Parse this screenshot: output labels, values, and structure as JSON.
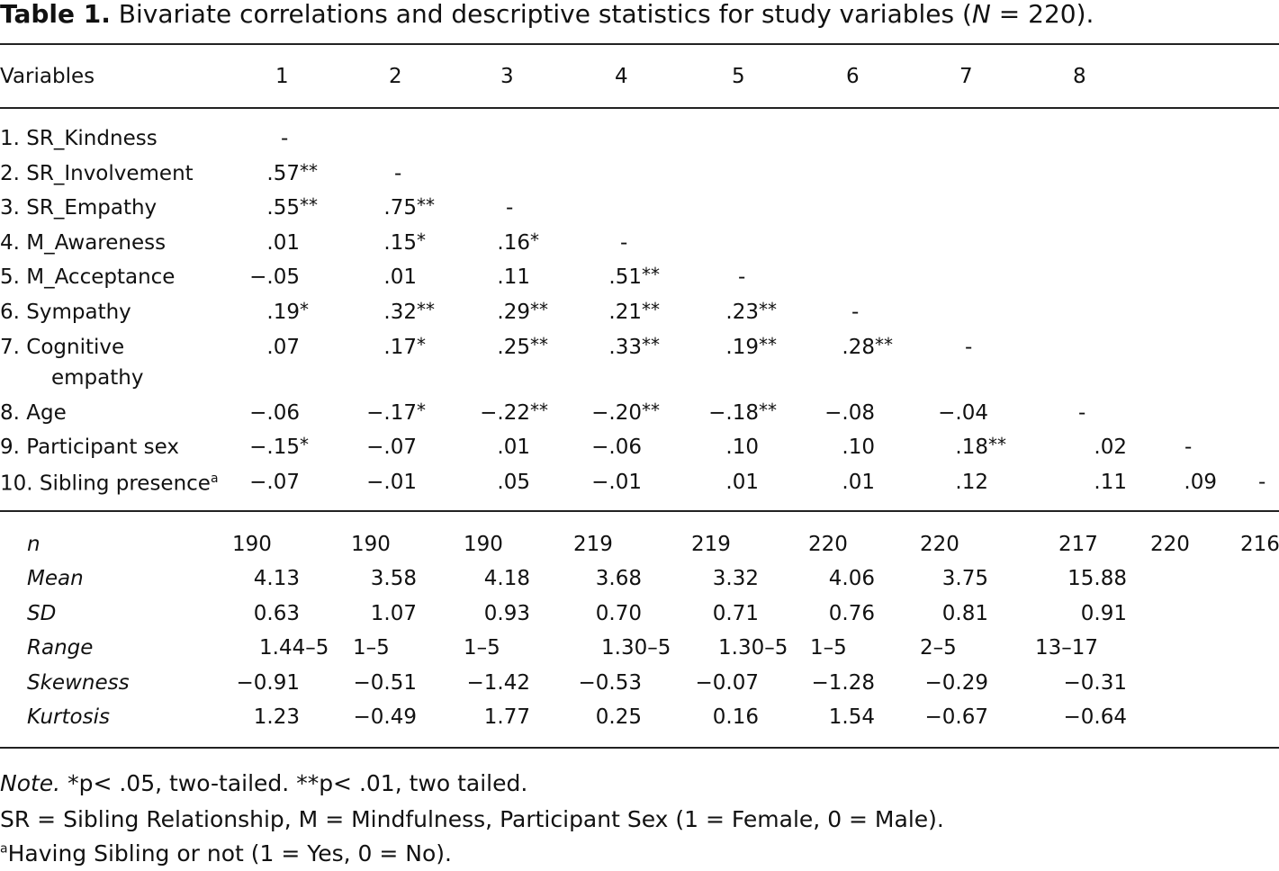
{
  "title": {
    "label": "Table 1.",
    "text": "Bivariate correlations and descriptive statistics for study variables (",
    "n_symbol": "N",
    "n_text": " = 220)."
  },
  "header": {
    "variables": "Variables",
    "columns": [
      "1",
      "2",
      "3",
      "4",
      "5",
      "6",
      "7",
      "8"
    ]
  },
  "rows": [
    {
      "label": "1. SR_Kindness",
      "cells": [
        [
          "-",
          ""
        ]
      ]
    },
    {
      "label": "2. SR_Involvement",
      "cells": [
        [
          ".57",
          "**"
        ],
        [
          "-",
          ""
        ]
      ]
    },
    {
      "label": "3. SR_Empathy",
      "cells": [
        [
          ".55",
          "**"
        ],
        [
          ".75",
          "**"
        ],
        [
          "-",
          ""
        ]
      ]
    },
    {
      "label": "4. M_Awareness",
      "cells": [
        [
          ".01",
          ""
        ],
        [
          ".15",
          "*"
        ],
        [
          ".16",
          "*"
        ],
        [
          "-",
          ""
        ]
      ]
    },
    {
      "label": "5. M_Acceptance",
      "cells": [
        [
          "−.05",
          ""
        ],
        [
          ".01",
          ""
        ],
        [
          ".11",
          ""
        ],
        [
          ".51",
          "**"
        ],
        [
          "-",
          ""
        ]
      ]
    },
    {
      "label": "6. Sympathy",
      "cells": [
        [
          ".19",
          "*"
        ],
        [
          ".32",
          "**"
        ],
        [
          ".29",
          "**"
        ],
        [
          ".21",
          "**"
        ],
        [
          ".23",
          "**"
        ],
        [
          "-",
          ""
        ]
      ]
    },
    {
      "label": "7. Cognitive",
      "label2": "empathy",
      "cells": [
        [
          ".07",
          ""
        ],
        [
          ".17",
          "*"
        ],
        [
          ".25",
          "**"
        ],
        [
          ".33",
          "**"
        ],
        [
          ".19",
          "**"
        ],
        [
          ".28",
          "**"
        ],
        [
          "-",
          ""
        ]
      ]
    },
    {
      "label": "8. Age",
      "cells": [
        [
          "−.06",
          ""
        ],
        [
          "−.17",
          "*"
        ],
        [
          "−.22",
          "**"
        ],
        [
          "−.20",
          "**"
        ],
        [
          "−.18",
          "**"
        ],
        [
          "−.08",
          ""
        ],
        [
          "−.04",
          ""
        ],
        [
          "-",
          ""
        ]
      ]
    },
    {
      "label": "9. Participant sex",
      "cells": [
        [
          "−.15",
          "*"
        ],
        [
          "−.07",
          ""
        ],
        [
          ".01",
          ""
        ],
        [
          "−.06",
          ""
        ],
        [
          ".10",
          ""
        ],
        [
          ".10",
          ""
        ],
        [
          ".18",
          "**"
        ],
        [
          ".02",
          ""
        ],
        [
          "-",
          ""
        ]
      ]
    },
    {
      "label": "10. Sibling presence",
      "label_sup": "a",
      "cells": [
        [
          "−.07",
          ""
        ],
        [
          "−.01",
          ""
        ],
        [
          ".05",
          ""
        ],
        [
          "−.01",
          ""
        ],
        [
          ".01",
          ""
        ],
        [
          ".01",
          ""
        ],
        [
          ".12",
          ""
        ],
        [
          ".11",
          ""
        ],
        [
          ".09",
          ""
        ],
        [
          "-",
          ""
        ]
      ]
    }
  ],
  "stats": {
    "n": {
      "label": "n",
      "values": [
        "190",
        "190",
        "190",
        "219",
        "219",
        "220",
        "220",
        "217",
        "220",
        "216"
      ]
    },
    "mean": {
      "label": "Mean",
      "values": [
        "4.13",
        "3.58",
        "4.18",
        "3.68",
        "3.32",
        "4.06",
        "3.75",
        "15.88"
      ]
    },
    "sd": {
      "label": "SD",
      "values": [
        "0.63",
        "1.07",
        "0.93",
        "0.70",
        "0.71",
        "0.76",
        "0.81",
        "0.91"
      ]
    },
    "range": {
      "label": "Range",
      "values": [
        "1.44–5",
        "1–5",
        "1–5",
        "1.30–5",
        "1.30–5",
        "1–5",
        "2–5",
        "13–17"
      ]
    },
    "skewness": {
      "label": "Skewness",
      "values": [
        "−0.91",
        "−0.51",
        "−1.42",
        "−0.53",
        "−0.07",
        "−1.28",
        "−0.29",
        "−0.31"
      ]
    },
    "kurtosis": {
      "label": "Kurtosis",
      "values": [
        "1.23",
        "−0.49",
        "1.77",
        "0.25",
        "0.16",
        "1.54",
        "−0.67",
        "−0.64"
      ]
    }
  },
  "notes": {
    "note_label": "Note.",
    "note_text": " *p< .05, two-tailed. **p< .01, two tailed.",
    "abbrev": "SR = Sibling Relationship, M = Mindfulness, Participant Sex (1 = Female, 0 = Male).",
    "footnote_marker": "a",
    "footnote": "Having Sibling or not (1 = Yes, 0 = No)."
  }
}
